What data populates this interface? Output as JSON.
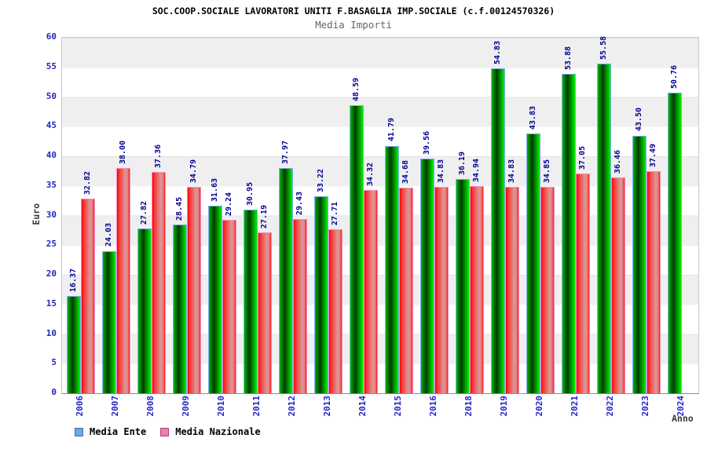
{
  "header": {
    "title": "SOC.COOP.SOCIALE LAVORATORI UNITI F.BASAGLIA IMP.SOCIALE (c.f.00124570326)",
    "subtitle": "Media Importi"
  },
  "axes": {
    "y": "Euro",
    "x": "Anno"
  },
  "legend": {
    "items": [
      {
        "label": "Media Ente",
        "color": "#6fa8dc",
        "border": "#3d6fa8"
      },
      {
        "label": "Media Nazionale",
        "color": "#ef7fad",
        "border": "#b23e77"
      }
    ]
  },
  "colors": {
    "bar_ente": "#00b000",
    "bar_nazionale": "#e82020",
    "value_label": "#000096",
    "tick_label": "#2424c8",
    "band_gray": "#efefef"
  },
  "chart_data": {
    "type": "bar",
    "title": "SOC.COOP.SOCIALE LAVORATORI UNITI F.BASAGLIA IMP.SOCIALE (c.f.00124570326)",
    "subtitle": "Media Importi",
    "xlabel": "Anno",
    "ylabel": "Euro",
    "ylim": [
      0,
      60
    ],
    "ytick_step": 5,
    "grid": "horizontal-bands",
    "legend_position": "bottom-left",
    "value_label_format": "2-decimals",
    "categories": [
      "2006",
      "2007",
      "2008",
      "2009",
      "2010",
      "2011",
      "2012",
      "2013",
      "2014",
      "2015",
      "2016",
      "2018",
      "2019",
      "2020",
      "2021",
      "2022",
      "2023",
      "2024"
    ],
    "series": [
      {
        "name": "Media Ente",
        "values": [
          16.37,
          24.03,
          27.82,
          28.45,
          31.63,
          30.95,
          37.97,
          33.22,
          48.59,
          41.79,
          39.56,
          36.19,
          54.83,
          43.83,
          53.88,
          55.58,
          43.5,
          50.76
        ]
      },
      {
        "name": "Media Nazionale",
        "values": [
          32.82,
          38.0,
          37.36,
          34.79,
          29.24,
          27.19,
          29.43,
          27.71,
          34.32,
          34.68,
          34.83,
          34.94,
          34.83,
          34.85,
          37.05,
          36.46,
          37.49,
          null
        ]
      }
    ]
  }
}
